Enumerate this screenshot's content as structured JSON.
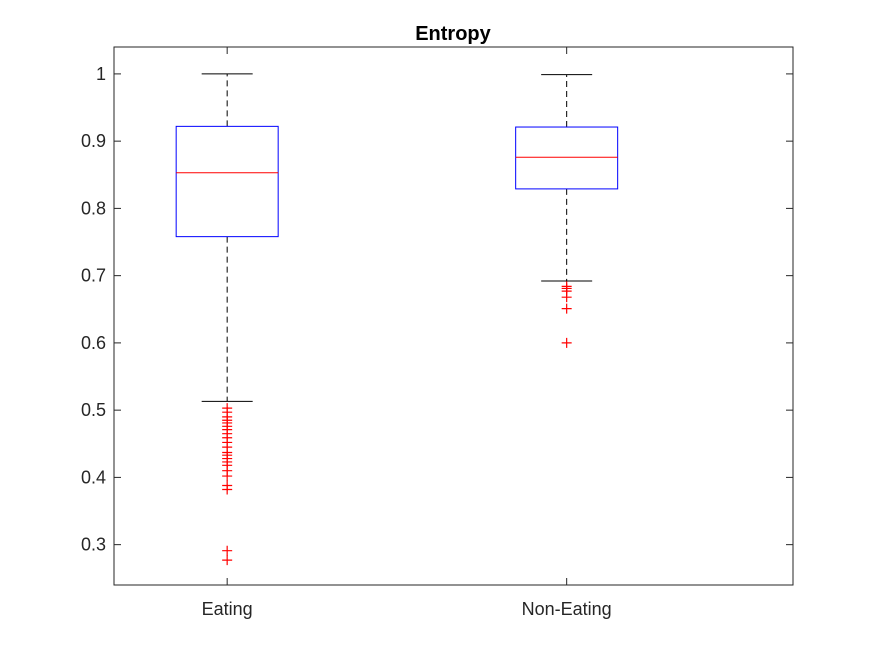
{
  "chart_data": {
    "type": "boxplot",
    "title": "Entropy",
    "xlabel": "",
    "ylabel": "",
    "ylim": [
      0.24,
      1.04
    ],
    "yticks": [
      0.3,
      0.4,
      0.5,
      0.6,
      0.7,
      0.8,
      0.9,
      1
    ],
    "ytick_labels": [
      "0.3",
      "0.4",
      "0.5",
      "0.6",
      "0.7",
      "0.8",
      "0.9",
      "1"
    ],
    "grid": false,
    "categories": [
      "Eating",
      "Non-Eating"
    ],
    "boxes": [
      {
        "category": "Eating",
        "q1": 0.758,
        "median": 0.853,
        "q3": 0.922,
        "whisker_low": 0.513,
        "whisker_high": 1.0,
        "outliers": [
          0.503,
          0.497,
          0.49,
          0.485,
          0.481,
          0.476,
          0.471,
          0.465,
          0.459,
          0.452,
          0.445,
          0.437,
          0.433,
          0.428,
          0.423,
          0.418,
          0.41,
          0.402,
          0.388,
          0.382,
          0.291,
          0.277
        ]
      },
      {
        "category": "Non-Eating",
        "q1": 0.829,
        "median": 0.876,
        "q3": 0.921,
        "whisker_low": 0.692,
        "whisker_high": 0.999,
        "outliers": [
          0.684,
          0.681,
          0.677,
          0.668,
          0.651,
          0.6
        ]
      }
    ],
    "colors": {
      "box": "#0000ff",
      "median": "#ff0000",
      "outlier": "#ff0000",
      "whisker": "#000000",
      "axis": "#262626"
    }
  }
}
